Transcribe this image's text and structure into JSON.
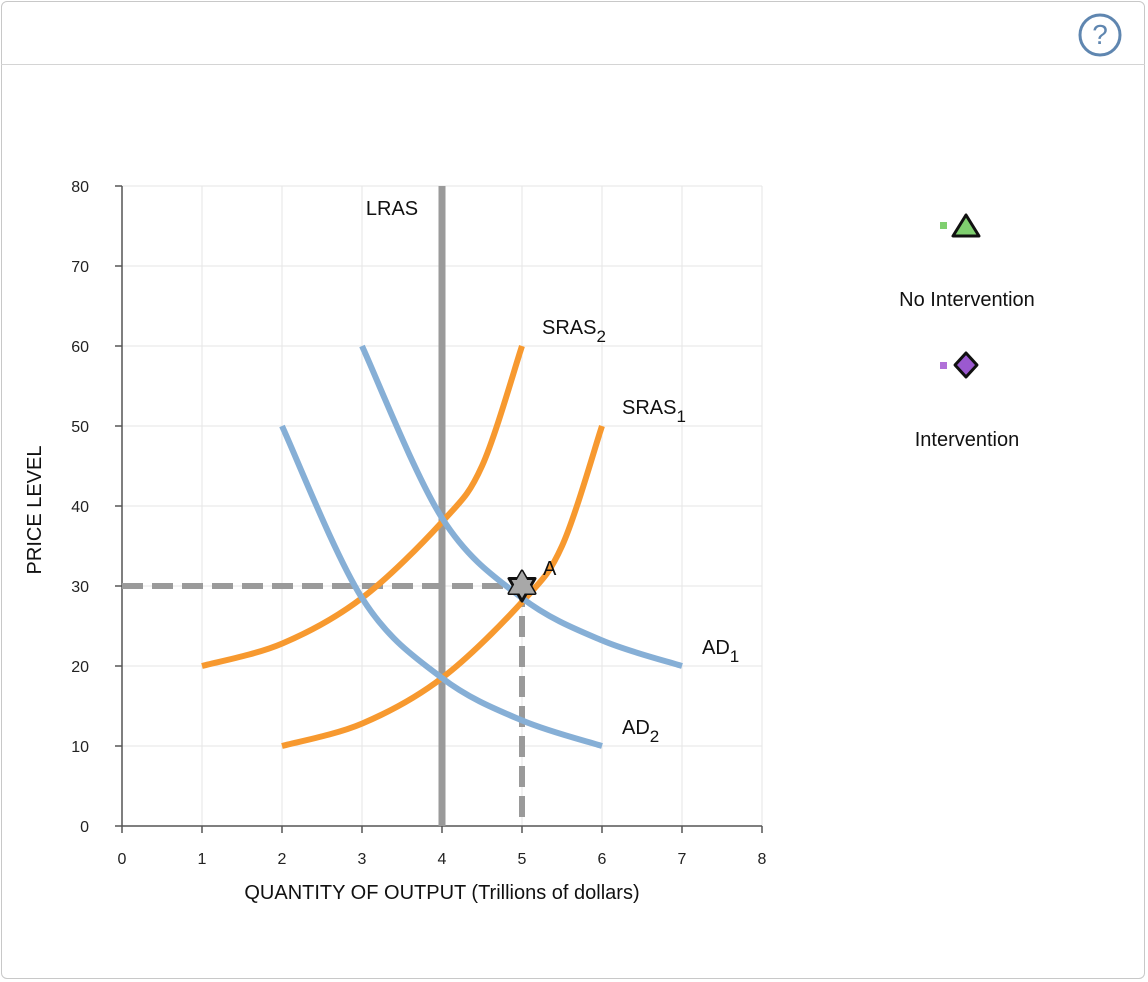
{
  "header": {
    "help_icon": "help-circle-icon",
    "help_glyph": "?"
  },
  "legend": {
    "items": [
      {
        "label": "No Intervention",
        "icon": "triangle-icon",
        "color": "#7fcf6f",
        "swatch_color": "#7fcf6f"
      },
      {
        "label": "Intervention",
        "icon": "diamond-icon",
        "color": "#9b59d0",
        "swatch_color": "#b070d8"
      }
    ]
  },
  "chart_data": {
    "type": "line",
    "title": "",
    "xlabel": "QUANTITY OF OUTPUT (Trillions of dollars)",
    "ylabel": "PRICE LEVEL",
    "xlim": [
      0,
      8
    ],
    "ylim": [
      0,
      80
    ],
    "xticks": [
      "0",
      "1",
      "2",
      "3",
      "4",
      "5",
      "6",
      "7",
      "8"
    ],
    "yticks": [
      "0",
      "10",
      "20",
      "30",
      "40",
      "50",
      "60",
      "70",
      "80"
    ],
    "grid": true,
    "colors": {
      "supply": "#f7992f",
      "demand": "#86afd6",
      "lras": "#9a9a9a",
      "guide": "#9a9a9a",
      "point": "#a8a8a8"
    },
    "lras": {
      "label": "LRAS",
      "x": 4,
      "y_range": [
        0,
        80
      ]
    },
    "series": [
      {
        "name": "SRAS",
        "subscript": "1",
        "kind": "supply",
        "points": [
          [
            2,
            10
          ],
          [
            3,
            12.8
          ],
          [
            4,
            18.5
          ],
          [
            5,
            28
          ],
          [
            5.5,
            35
          ],
          [
            6,
            50
          ]
        ]
      },
      {
        "name": "SRAS",
        "subscript": "2",
        "kind": "supply",
        "points": [
          [
            1,
            20
          ],
          [
            2,
            22.8
          ],
          [
            3,
            28.5
          ],
          [
            4,
            38
          ],
          [
            4.5,
            45
          ],
          [
            5,
            60
          ]
        ]
      },
      {
        "name": "AD",
        "subscript": "1",
        "kind": "demand",
        "points": [
          [
            3,
            60
          ],
          [
            4,
            38.5
          ],
          [
            5,
            28.5
          ],
          [
            6,
            23.2
          ],
          [
            7,
            20
          ]
        ]
      },
      {
        "name": "AD",
        "subscript": "2",
        "kind": "demand",
        "points": [
          [
            2,
            50
          ],
          [
            3,
            28.5
          ],
          [
            4,
            18.5
          ],
          [
            5,
            13.2
          ],
          [
            6,
            10
          ]
        ]
      }
    ],
    "annotations": [
      {
        "label": "A",
        "x": 5,
        "y": 30,
        "marker": "star-icon"
      }
    ],
    "guides": {
      "x": 5,
      "y": 30
    }
  }
}
